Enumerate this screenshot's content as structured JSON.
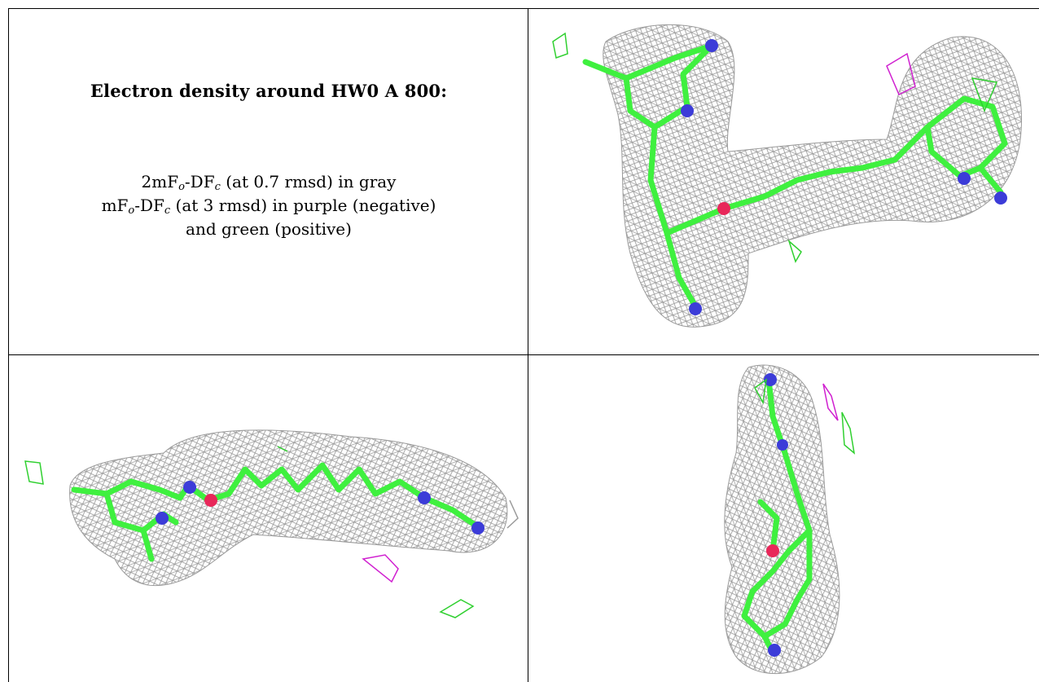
{
  "title": "Electron density around HW0 A 800:",
  "legend": {
    "line1_prefix": "2mF",
    "line1_sub1": "o",
    "line1_mid": "-DF",
    "line1_sub2": "c",
    "line1_suffix": " (at 0.7 rmsd) in gray",
    "line2_prefix": "mF",
    "line2_sub1": "o",
    "line2_mid": "-DF",
    "line2_sub2": "c",
    "line2_suffix": " (at 3 rmsd) in purple (negative)",
    "line3": "and green (positive)"
  },
  "colors": {
    "mesh": "#9a9a9a",
    "carbon": "#3ff03f",
    "nitrogen": "#3c3cd8",
    "oxygen": "#e8285a",
    "negative": "#d020d0",
    "positive": "#30d030"
  }
}
